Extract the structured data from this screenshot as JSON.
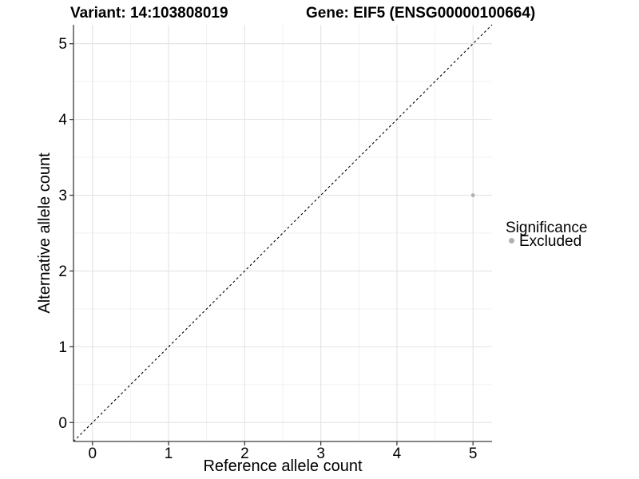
{
  "titles": {
    "variant": "Variant: 14:103808019",
    "gene": "Gene: EIF5 (ENSG00000100664)"
  },
  "axes": {
    "x": {
      "label": "Reference allele count",
      "tick_values": [
        0,
        1,
        2,
        3,
        4,
        5
      ],
      "tick_labels": [
        "0",
        "1",
        "2",
        "3",
        "4",
        "5"
      ],
      "minor_values": [
        0.5,
        1.5,
        2.5,
        3.5,
        4.5
      ]
    },
    "y": {
      "label": "Alternative allele count",
      "tick_values": [
        0,
        1,
        2,
        3,
        4,
        5
      ],
      "tick_labels": [
        "0",
        "1",
        "2",
        "3",
        "4",
        "5"
      ],
      "minor_values": [
        0.5,
        1.5,
        2.5,
        3.5,
        4.5
      ]
    }
  },
  "legend": {
    "title": "Significance",
    "items": [
      {
        "label": "Excluded",
        "color": "#b0b0b0"
      }
    ]
  },
  "chart_data": {
    "type": "scatter",
    "title": "Variant: 14:103808019 | Gene: EIF5 (ENSG00000100664)",
    "xlabel": "Reference allele count",
    "ylabel": "Alternative allele count",
    "xlim": [
      -0.25,
      5.25
    ],
    "ylim": [
      -0.25,
      5.25
    ],
    "x_ticks": [
      0,
      1,
      2,
      3,
      4,
      5
    ],
    "y_ticks": [
      0,
      1,
      2,
      3,
      4,
      5
    ],
    "grid": "major at integers, minor at 0.5 steps, light gray on white",
    "legend_position": "right",
    "series": [
      {
        "name": "Excluded",
        "color": "#b0b0b0",
        "marker": "circle",
        "points": [
          {
            "x": 5,
            "y": 3
          }
        ]
      }
    ],
    "reference_line": {
      "style": "dashed",
      "equation": "y = x",
      "color": "#000000"
    }
  },
  "colors": {
    "background": "#ffffff",
    "axis": "#3c3c3c",
    "text": "#000000",
    "grid_major": "#e3e3e3",
    "grid_minor": "#f0f0f0",
    "point": "#b0b0b0",
    "identity_line": "#000000"
  }
}
